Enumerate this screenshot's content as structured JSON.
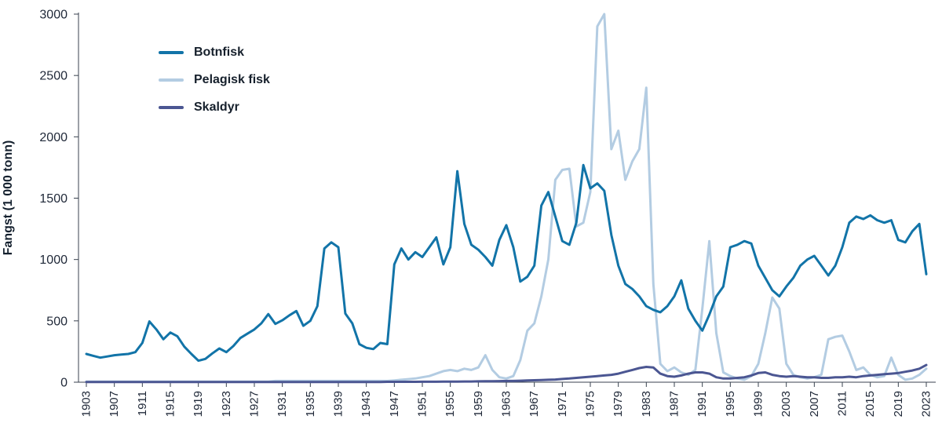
{
  "colors": {
    "botnfisk": "#1274a8",
    "pelagisk_fisk": "#b3cce2",
    "skaldyr": "#4b5692",
    "axis": "#39424f",
    "text": "#1f2838"
  },
  "chart_data": {
    "type": "line",
    "title": "",
    "xlabel": "",
    "ylabel": "Fangst (1 000 tonn)",
    "ylim": [
      0,
      3000
    ],
    "y_ticks": [
      0,
      500,
      1000,
      1500,
      2000,
      2500,
      3000
    ],
    "x_range": [
      1903,
      2023
    ],
    "x_step": 1,
    "x_ticks": [
      1903,
      1907,
      1911,
      1915,
      1919,
      1923,
      1927,
      1931,
      1935,
      1939,
      1943,
      1947,
      1951,
      1955,
      1959,
      1963,
      1967,
      1971,
      1975,
      1979,
      1983,
      1987,
      1991,
      1995,
      1999,
      2003,
      2007,
      2011,
      2015,
      2019,
      2023
    ],
    "grid": false,
    "legend_position": "top-left",
    "series": [
      {
        "name": "Botnfisk",
        "color": "#1274a8",
        "values": [
          230,
          215,
          200,
          210,
          220,
          225,
          230,
          245,
          320,
          495,
          430,
          350,
          405,
          375,
          290,
          230,
          175,
          190,
          235,
          275,
          245,
          295,
          360,
          395,
          430,
          480,
          555,
          475,
          505,
          545,
          580,
          460,
          500,
          620,
          1090,
          1140,
          1100,
          560,
          480,
          310,
          280,
          270,
          320,
          310,
          960,
          1090,
          1000,
          1060,
          1020,
          1100,
          1180,
          960,
          1100,
          1720,
          1290,
          1120,
          1080,
          1020,
          950,
          1160,
          1280,
          1100,
          820,
          860,
          950,
          1440,
          1550,
          1350,
          1150,
          1120,
          1300,
          1770,
          1580,
          1620,
          1560,
          1200,
          950,
          800,
          760,
          700,
          620,
          590,
          570,
          620,
          700,
          830,
          600,
          500,
          420,
          550,
          700,
          780,
          1100,
          1120,
          1150,
          1130,
          950,
          850,
          750,
          700,
          780,
          850,
          950,
          1000,
          1030,
          950,
          870,
          950,
          1100,
          1300,
          1350,
          1330,
          1360,
          1320,
          1300,
          1320,
          1160,
          1140,
          1230,
          1290,
          880
        ]
      },
      {
        "name": "Pelagisk fisk",
        "color": "#b3cce2",
        "values": [
          5,
          5,
          5,
          5,
          5,
          5,
          5,
          5,
          5,
          5,
          5,
          5,
          5,
          5,
          5,
          5,
          5,
          5,
          5,
          5,
          5,
          5,
          5,
          5,
          5,
          5,
          5,
          10,
          10,
          10,
          10,
          10,
          10,
          10,
          10,
          10,
          10,
          10,
          10,
          10,
          10,
          10,
          10,
          10,
          15,
          20,
          25,
          30,
          40,
          50,
          70,
          90,
          100,
          90,
          110,
          100,
          120,
          220,
          100,
          40,
          30,
          50,
          180,
          420,
          480,
          700,
          1000,
          1650,
          1730,
          1740,
          1270,
          1300,
          1550,
          2900,
          3000,
          1900,
          2050,
          1650,
          1800,
          1900,
          2400,
          800,
          150,
          90,
          120,
          80,
          60,
          100,
          600,
          1150,
          400,
          80,
          50,
          30,
          20,
          50,
          150,
          400,
          690,
          600,
          150,
          60,
          40,
          30,
          40,
          60,
          350,
          370,
          380,
          250,
          100,
          120,
          60,
          40,
          50,
          200,
          60,
          20,
          30,
          60,
          110
        ]
      },
      {
        "name": "Skaldyr",
        "color": "#4b5692",
        "values": [
          2,
          2,
          2,
          2,
          2,
          2,
          2,
          2,
          2,
          2,
          2,
          2,
          2,
          2,
          2,
          2,
          2,
          2,
          2,
          2,
          2,
          2,
          2,
          2,
          2,
          2,
          2,
          2,
          2,
          2,
          2,
          2,
          2,
          2,
          2,
          2,
          2,
          2,
          2,
          2,
          2,
          2,
          2,
          3,
          3,
          3,
          3,
          3,
          4,
          4,
          4,
          5,
          5,
          5,
          6,
          6,
          7,
          8,
          8,
          9,
          10,
          10,
          12,
          14,
          16,
          18,
          20,
          22,
          26,
          30,
          35,
          40,
          45,
          50,
          55,
          60,
          70,
          85,
          100,
          115,
          125,
          120,
          70,
          50,
          45,
          55,
          70,
          80,
          80,
          70,
          40,
          30,
          30,
          35,
          40,
          55,
          75,
          80,
          60,
          50,
          45,
          50,
          45,
          40,
          40,
          35,
          35,
          40,
          40,
          45,
          40,
          50,
          55,
          60,
          65,
          70,
          75,
          85,
          95,
          110,
          140
        ]
      }
    ]
  }
}
